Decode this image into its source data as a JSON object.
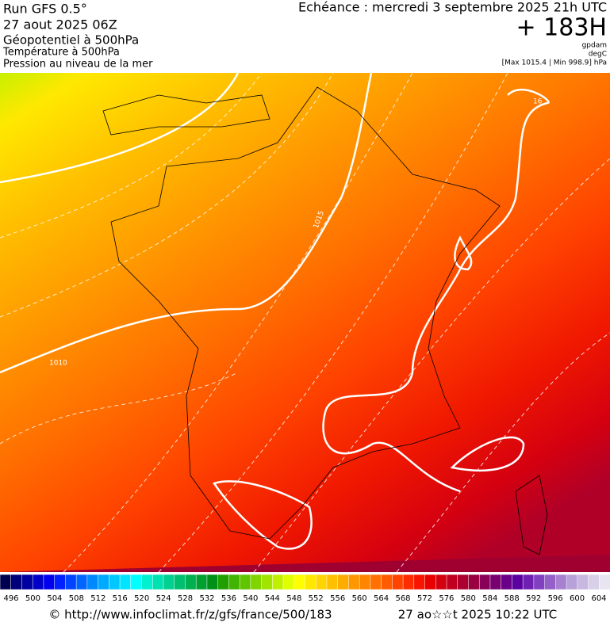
{
  "header": {
    "run": "Run GFS 0.5°",
    "date": "27 aout 2025 06Z",
    "field1": "Géopotentiel à 500hPa",
    "field2": "Température à 500hPa",
    "field3": "Pression au niveau de la mer",
    "echeance": "Echéance : mercredi 3 septembre 2025 21h UTC",
    "lead": "+ 183H",
    "unit1": "gpdam",
    "unit2": "degC",
    "range": "[Max 1015.4 | Min 998.9] hPa"
  },
  "map": {
    "contour_labels": [
      "1010",
      "1015",
      "16"
    ]
  },
  "scale": {
    "labels": [
      496,
      500,
      504,
      508,
      512,
      516,
      520,
      524,
      528,
      532,
      536,
      540,
      544,
      548,
      552,
      556,
      560,
      564,
      568,
      572,
      576,
      580,
      584,
      588,
      592,
      596,
      600,
      604
    ],
    "colors": [
      "#000050",
      "#00007a",
      "#0000a0",
      "#0000c8",
      "#0000ee",
      "#0020ff",
      "#0044ff",
      "#0066ff",
      "#0088ff",
      "#00aaff",
      "#00c8ff",
      "#00e4ff",
      "#00ffff",
      "#00f0d0",
      "#00e0b0",
      "#00d090",
      "#00c070",
      "#00b050",
      "#00a030",
      "#009018",
      "#20a000",
      "#40b400",
      "#60c400",
      "#80d400",
      "#a0e400",
      "#c0f000",
      "#e0ff00",
      "#ffff00",
      "#ffe800",
      "#ffd400",
      "#ffc000",
      "#ffac00",
      "#ff9800",
      "#ff8400",
      "#ff7000",
      "#ff5c00",
      "#ff4400",
      "#ff2c00",
      "#f81400",
      "#e80000",
      "#d40010",
      "#c00020",
      "#ac0030",
      "#980040",
      "#880058",
      "#780070",
      "#680088",
      "#5c00a0",
      "#7020b0",
      "#8040c0",
      "#9460c8",
      "#a880d0",
      "#b8a0d8",
      "#c8b8e0",
      "#d8d0e8",
      "#e8e4f0"
    ]
  },
  "footer": {
    "url": "© http://www.infoclimat.fr/z/gfs/france/500/183",
    "stamp": "27 ao☆☆t 2025 10:22 UTC"
  }
}
